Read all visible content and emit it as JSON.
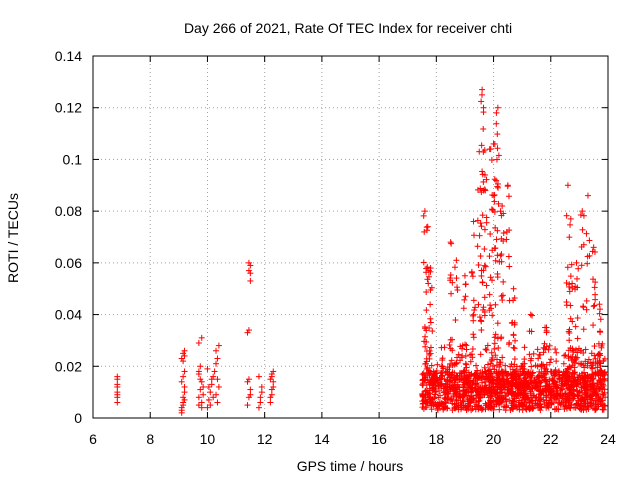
{
  "chart_data": {
    "type": "scatter",
    "title": "Day 266 of 2021, Rate Of TEC Index for receiver chti",
    "xlabel": "GPS time / hours",
    "ylabel": "ROTI / TECUs",
    "xlim": [
      6,
      24
    ],
    "ylim": [
      0,
      0.14
    ],
    "xticks": [
      "6",
      "8",
      "10",
      "12",
      "14",
      "16",
      "18",
      "20",
      "22",
      "24"
    ],
    "yticks": [
      "0",
      "0.02",
      "0.04",
      "0.06",
      "0.08",
      "0.1",
      "0.12",
      "0.14"
    ],
    "grid": true,
    "marker": "+",
    "series": [
      {
        "name": "ROTI",
        "color": "#ff0000",
        "x": [
          6.85,
          6.85,
          6.85,
          6.85,
          6.85,
          6.85,
          6.85,
          6.85,
          9.1,
          9.1,
          9.15,
          9.15,
          9.2,
          9.2,
          9.1,
          9.15,
          9.2,
          9.1,
          9.15,
          9.2,
          9.1,
          9.15,
          9.2,
          9.15,
          9.2,
          9.7,
          9.7,
          9.75,
          9.8,
          9.7,
          9.75,
          9.8,
          9.85,
          9.7,
          9.8,
          9.85,
          9.75,
          9.7,
          9.8,
          10.0,
          10.05,
          10.1,
          10.15,
          10.2,
          10.0,
          10.1,
          10.2,
          10.05,
          10.15,
          10.25,
          10.3,
          10.35,
          10.3,
          10.4,
          10.35,
          10.3,
          10.4,
          10.35,
          11.4,
          11.45,
          11.5,
          11.4,
          11.45,
          11.5,
          11.4,
          11.45,
          11.5,
          11.45,
          11.5,
          11.45,
          11.5,
          11.8,
          11.85,
          11.9,
          11.8,
          11.85,
          11.9,
          12.2,
          12.25,
          12.3,
          12.2,
          12.25,
          12.3,
          12.2,
          12.25,
          12.3,
          12.25
        ],
        "y": [
          0.006,
          0.008,
          0.01,
          0.012,
          0.013,
          0.015,
          0.016,
          0.009,
          0.002,
          0.004,
          0.006,
          0.008,
          0.01,
          0.012,
          0.014,
          0.016,
          0.018,
          0.003,
          0.005,
          0.007,
          0.023,
          0.025,
          0.026,
          0.022,
          0.024,
          0.005,
          0.008,
          0.011,
          0.014,
          0.017,
          0.02,
          0.006,
          0.009,
          0.029,
          0.031,
          0.012,
          0.015,
          0.018,
          0.004,
          0.004,
          0.007,
          0.01,
          0.013,
          0.016,
          0.019,
          0.005,
          0.008,
          0.012,
          0.015,
          0.018,
          0.021,
          0.023,
          0.026,
          0.028,
          0.006,
          0.009,
          0.012,
          0.015,
          0.005,
          0.008,
          0.011,
          0.014,
          0.015,
          0.009,
          0.033,
          0.034,
          0.053,
          0.057,
          0.059,
          0.06,
          0.056,
          0.004,
          0.008,
          0.012,
          0.016,
          0.006,
          0.01,
          0.006,
          0.009,
          0.012,
          0.015,
          0.017,
          0.018,
          0.008,
          0.011,
          0.014,
          0.016
        ]
      }
    ]
  }
}
